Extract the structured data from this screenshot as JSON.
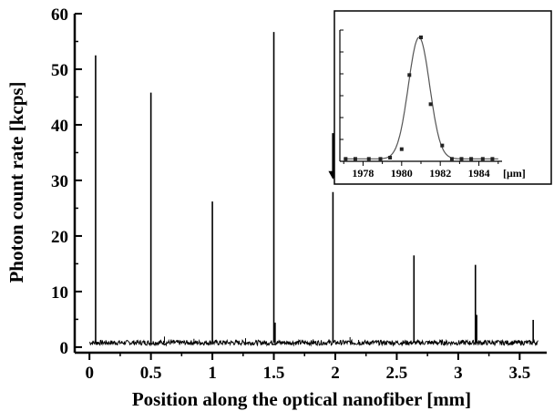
{
  "chart_data": [
    {
      "type": "line",
      "panel": "main",
      "xlabel": "Position along the optical nanofiber [mm]",
      "ylabel": "Photon count rate [kcps]",
      "xlim": [
        -0.12,
        3.72
      ],
      "ylim": [
        -1,
        60
      ],
      "xticks": [
        "0",
        "0.5",
        "1",
        "1.5",
        "2",
        "2.5",
        "3",
        "3.5"
      ],
      "xtick_values": [
        0,
        0.5,
        1,
        1.5,
        2,
        2.5,
        3,
        3.5
      ],
      "yticks": [
        "0",
        "10",
        "20",
        "30",
        "40",
        "50",
        "60"
      ],
      "ytick_values": [
        0,
        10,
        20,
        30,
        40,
        50,
        60
      ],
      "baseline": 0.8,
      "peaks": [
        {
          "x": 0.05,
          "y": 52.5
        },
        {
          "x": 0.5,
          "y": 45.8
        },
        {
          "x": 1.0,
          "y": 26.2
        },
        {
          "x": 1.5,
          "y": 56.7
        },
        {
          "x": 1.51,
          "y": 4.4
        },
        {
          "x": 1.981,
          "y": 27.9
        },
        {
          "x": 2.64,
          "y": 16.5
        },
        {
          "x": 3.14,
          "y": 14.8
        },
        {
          "x": 3.15,
          "y": 5.8
        },
        {
          "x": 3.61,
          "y": 4.9
        }
      ],
      "small_spikes": [
        {
          "x": 0.61,
          "y": 1.9
        },
        {
          "x": 0.85,
          "y": 1.5
        },
        {
          "x": 1.27,
          "y": 1.6
        },
        {
          "x": 1.82,
          "y": 1.4
        },
        {
          "x": 2.12,
          "y": 1.8
        },
        {
          "x": 2.19,
          "y": 1.3
        }
      ],
      "annotation": {
        "type": "arrow",
        "x": 1.981,
        "y_from": 38.5,
        "y_to": 30.2
      },
      "grid": false
    },
    {
      "type": "scatter",
      "panel": "inset",
      "xlabel_unit": "[μm]",
      "xlim": [
        1976.8,
        1985.2
      ],
      "xticks": [
        "1978",
        "1980",
        "1982",
        "1984"
      ],
      "xtick_values": [
        1978,
        1980,
        1982,
        1984
      ],
      "ylim": [
        0,
        1.08
      ],
      "points": [
        {
          "x": 1977.1,
          "y": 0.02
        },
        {
          "x": 1977.6,
          "y": 0.02
        },
        {
          "x": 1978.3,
          "y": 0.02
        },
        {
          "x": 1978.9,
          "y": 0.02
        },
        {
          "x": 1979.4,
          "y": 0.03
        },
        {
          "x": 1980.0,
          "y": 0.1
        },
        {
          "x": 1980.4,
          "y": 0.71
        },
        {
          "x": 1981.0,
          "y": 1.02
        },
        {
          "x": 1981.5,
          "y": 0.47
        },
        {
          "x": 1982.1,
          "y": 0.13
        },
        {
          "x": 1982.6,
          "y": 0.02
        },
        {
          "x": 1983.1,
          "y": 0.02
        },
        {
          "x": 1983.6,
          "y": 0.02
        },
        {
          "x": 1984.2,
          "y": 0.02
        },
        {
          "x": 1984.7,
          "y": 0.02
        }
      ],
      "fit": {
        "type": "gaussian",
        "center": 1980.9,
        "sigma": 0.55,
        "amplitude": 1.0,
        "offset": 0.02
      }
    }
  ]
}
